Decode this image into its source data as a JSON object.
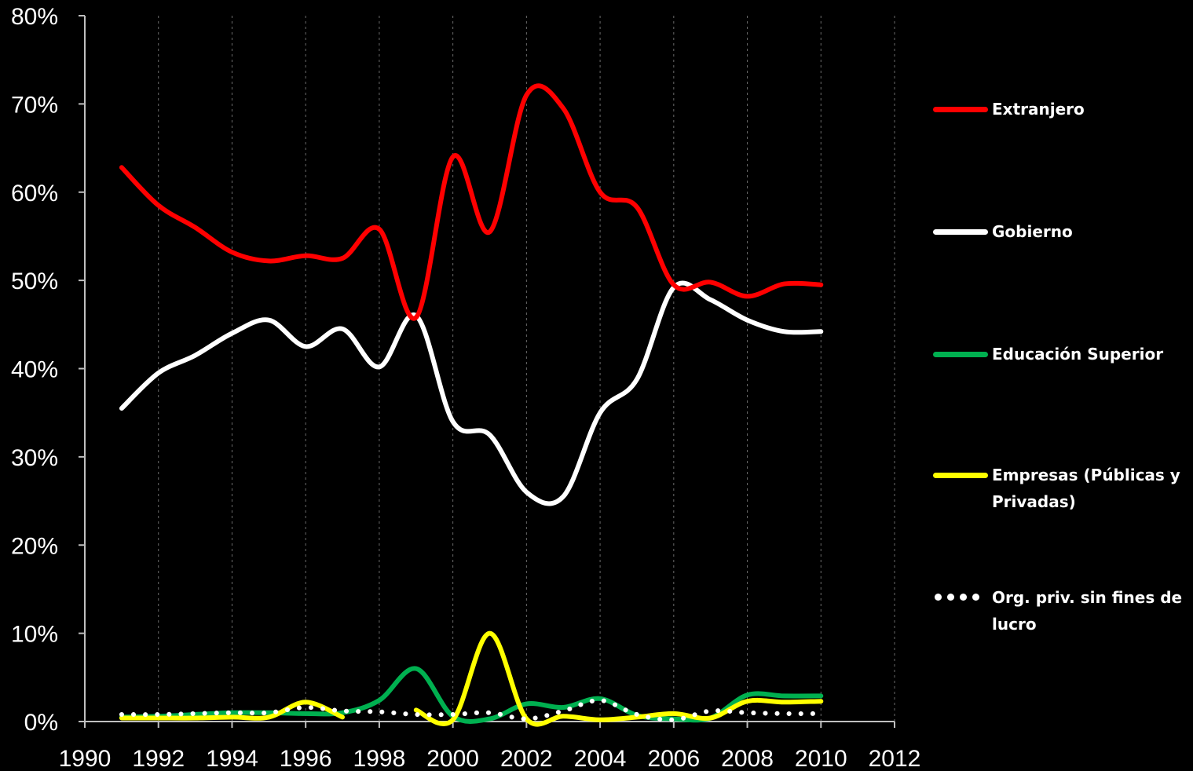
{
  "chart_data": {
    "type": "line",
    "title": "",
    "xlabel": "",
    "ylabel": "",
    "xlim": [
      1990,
      2012
    ],
    "ylim": [
      0,
      80
    ],
    "x_ticks": [
      1990,
      1992,
      1994,
      1996,
      1998,
      2000,
      2002,
      2004,
      2006,
      2008,
      2010,
      2012
    ],
    "y_ticks": [
      "0%",
      "10%",
      "20%",
      "30%",
      "40%",
      "50%",
      "60%",
      "70%",
      "80%"
    ],
    "grid": "vertical dashed",
    "legend_position": "right",
    "background": "#000000",
    "series": [
      {
        "name": "Extranjero",
        "color": "#ff0000",
        "style": "solid",
        "x": [
          1991,
          1992,
          1993,
          1994,
          1995,
          1996,
          1997,
          1998,
          1999,
          2000,
          2001,
          2002,
          2003,
          2004,
          2005,
          2006,
          2007,
          2008,
          2009,
          2010
        ],
        "y": [
          62.8,
          58.5,
          56.0,
          53.2,
          52.2,
          52.8,
          52.5,
          55.8,
          45.8,
          64.0,
          55.5,
          71.0,
          69.5,
          60.0,
          58.3,
          49.5,
          49.8,
          48.2,
          49.6,
          49.5
        ]
      },
      {
        "name": "Gobierno",
        "color": "#ffffff",
        "style": "solid",
        "x": [
          1991,
          1992,
          1993,
          1994,
          1995,
          1996,
          1997,
          1998,
          1999,
          2000,
          2001,
          2002,
          2003,
          2004,
          2005,
          2006,
          2007,
          2008,
          2009,
          2010
        ],
        "y": [
          35.5,
          39.5,
          41.5,
          44.0,
          45.5,
          42.5,
          44.5,
          40.2,
          46.0,
          34.0,
          32.5,
          26.0,
          25.5,
          35.0,
          38.8,
          49.2,
          47.8,
          45.5,
          44.2,
          44.2
        ]
      },
      {
        "name": "Educación Superior",
        "color": "#00b050",
        "style": "solid",
        "x": [
          1991,
          1992,
          1993,
          1994,
          1995,
          1996,
          1997,
          1998,
          1999,
          2000,
          2001,
          2002,
          2003,
          2004,
          2005,
          2006,
          2007,
          2008,
          2009,
          2010
        ],
        "y": [
          0.5,
          0.6,
          0.8,
          1.0,
          1.0,
          0.9,
          1.0,
          2.4,
          6.0,
          0.6,
          0.3,
          2.0,
          1.6,
          2.6,
          0.7,
          0.3,
          0.4,
          3.0,
          2.9,
          2.9
        ]
      },
      {
        "name": "Empresas (Públicas y Privadas)",
        "color": "#ffff00",
        "style": "solid",
        "x": [
          1991,
          1992,
          1993,
          1994,
          1995,
          1996,
          1997,
          1999,
          2000,
          2001,
          2002,
          2003,
          2004,
          2005,
          2006,
          2007,
          2008,
          2009,
          2010
        ],
        "y": [
          0.4,
          0.4,
          0.4,
          0.5,
          0.5,
          2.2,
          0.5,
          1.3,
          0.2,
          10.0,
          0.3,
          0.6,
          0.2,
          0.5,
          0.9,
          0.4,
          2.3,
          2.2,
          2.3
        ]
      },
      {
        "name": "Org. priv. sin fines de lucro",
        "color": "#ffffff",
        "style": "dotted",
        "x": [
          1991,
          1992,
          1993,
          1994,
          1995,
          1996,
          1997,
          1998,
          1999,
          2000,
          2001,
          2002,
          2003,
          2004,
          2005,
          2006,
          2007,
          2008,
          2009,
          2010
        ],
        "y": [
          0.8,
          0.8,
          0.9,
          1.0,
          1.0,
          1.6,
          1.2,
          1.1,
          0.8,
          0.8,
          1.0,
          0.3,
          1.2,
          2.4,
          0.8,
          0.2,
          1.2,
          1.0,
          0.9,
          0.9
        ]
      }
    ]
  }
}
